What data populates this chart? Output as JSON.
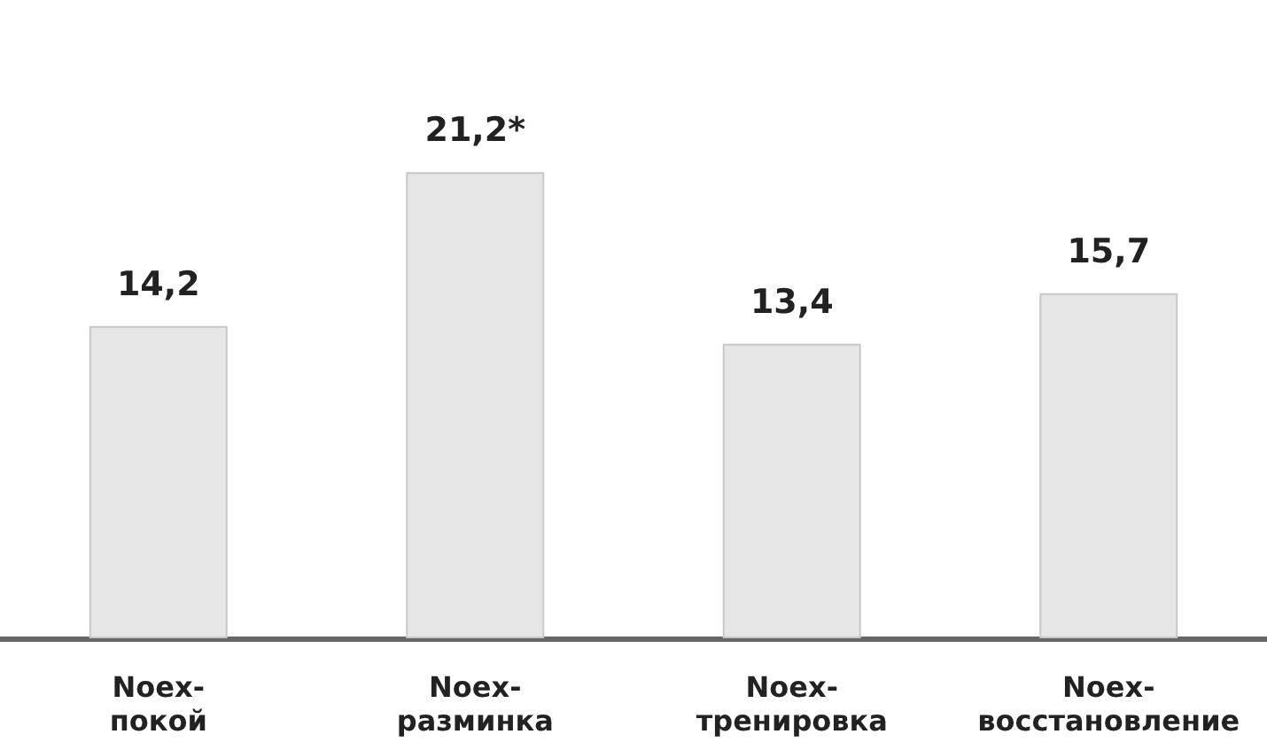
{
  "chart_data": {
    "type": "bar",
    "categories": [
      "Noex-\nпокой",
      "Noex-\nразминка",
      "Noex-\nтренировка",
      "Noex-\nвосстановление"
    ],
    "values": [
      14.2,
      21.2,
      13.4,
      15.7
    ],
    "value_labels": [
      "14,2",
      "21,2*",
      "13,4",
      "15,7"
    ],
    "color": "#e6e6e6",
    "tick_labels": "x"
  }
}
